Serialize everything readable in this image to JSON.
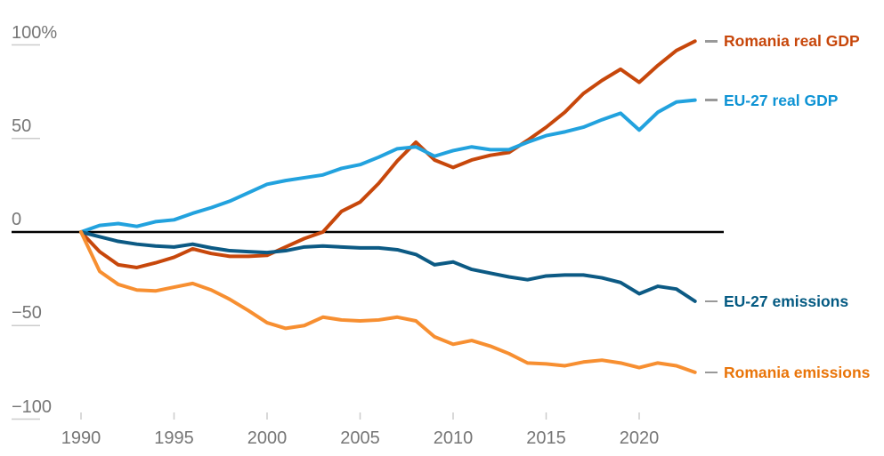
{
  "chart_data": {
    "type": "line",
    "unit": "%",
    "title": "",
    "xlabel": "",
    "ylabel": "",
    "ylim": [
      -100,
      100
    ],
    "xlim": [
      1990,
      2023
    ],
    "grid": "baseline-and-edge-ticks",
    "legend_position": "right",
    "baseline_value": 0,
    "baseline_color": "#000000",
    "axis_text_color": "#767676",
    "tick_color": "#cccccc",
    "legend_dash_color": "#999999",
    "x": [
      1990,
      1991,
      1992,
      1993,
      1994,
      1995,
      1996,
      1997,
      1998,
      1999,
      2000,
      2001,
      2002,
      2003,
      2004,
      2005,
      2006,
      2007,
      2008,
      2009,
      2010,
      2011,
      2012,
      2013,
      2014,
      2015,
      2016,
      2017,
      2018,
      2019,
      2020,
      2021,
      2022,
      2023
    ],
    "x_ticks": [
      1990,
      1995,
      2000,
      2005,
      2010,
      2015,
      2020
    ],
    "y_ticks": [
      {
        "value": 100,
        "label": "100%"
      },
      {
        "value": 50,
        "label": "50"
      },
      {
        "value": 0,
        "label": "0"
      },
      {
        "value": -50,
        "label": "−50"
      },
      {
        "value": -100,
        "label": "−100"
      }
    ],
    "series": [
      {
        "name": "Romania real GDP",
        "color": "#c7470b",
        "label_color": "#c7470b",
        "values": [
          0,
          -10.5,
          -17.5,
          -19,
          -16.5,
          -13.5,
          -9,
          -11.5,
          -13,
          -13,
          -12.5,
          -8,
          -3.5,
          0,
          11,
          16,
          26,
          38,
          48,
          38.5,
          34.5,
          38.5,
          41,
          42.5,
          49,
          56,
          64,
          74,
          81,
          87,
          80,
          89,
          97,
          102
        ]
      },
      {
        "name": "EU-27 real GDP",
        "color": "#22a2de",
        "label_color": "#0e93d4",
        "values": [
          0,
          3.5,
          4.5,
          3,
          5.5,
          6.5,
          10,
          13,
          16.5,
          21,
          25.5,
          27.5,
          29,
          30.5,
          34,
          36,
          40,
          44.5,
          45.5,
          40.5,
          43.5,
          45.5,
          44,
          44,
          48,
          51.5,
          53.5,
          56,
          60,
          63.5,
          54.5,
          64,
          69.5,
          70.5
        ]
      },
      {
        "name": "EU-27 emissions",
        "color": "#0c5a84",
        "label_color": "#045a82",
        "values": [
          0,
          -2.5,
          -5,
          -6.5,
          -7.5,
          -8,
          -6.5,
          -8.5,
          -10,
          -10.5,
          -11,
          -10,
          -8,
          -7.5,
          -8,
          -8.5,
          -8.5,
          -9.5,
          -12,
          -17.5,
          -16,
          -20,
          -22,
          -24,
          -25.5,
          -23.5,
          -23,
          -23,
          -24.5,
          -27,
          -33,
          -29,
          -30.5,
          -37
        ]
      },
      {
        "name": "Romania emissions",
        "color": "#f78f31",
        "label_color": "#e9750a",
        "values": [
          0,
          -21,
          -28,
          -31,
          -31.5,
          -29.5,
          -27.5,
          -31,
          -36,
          -42,
          -48.5,
          -51.5,
          -50,
          -45.5,
          -47,
          -47.5,
          -47,
          -45.5,
          -47.5,
          -56,
          -60,
          -58,
          -61,
          -65,
          -70,
          -70.5,
          -71.5,
          -69.5,
          -68.5,
          -70,
          -72.5,
          -70,
          -71.5,
          -75
        ]
      }
    ]
  }
}
